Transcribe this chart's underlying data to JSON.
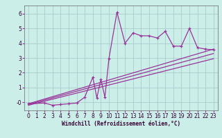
{
  "xlabel": "Windchill (Refroidissement éolien,°C)",
  "background_color": "#cceee8",
  "grid_color": "#aacccc",
  "line_color": "#993399",
  "spine_color": "#666666",
  "xlim": [
    -0.5,
    23.5
  ],
  "ylim": [
    -0.55,
    6.55
  ],
  "xticks": [
    0,
    1,
    2,
    3,
    4,
    5,
    6,
    7,
    8,
    9,
    10,
    11,
    12,
    13,
    14,
    15,
    16,
    17,
    18,
    19,
    20,
    21,
    22,
    23
  ],
  "yticks": [
    0,
    1,
    2,
    3,
    4,
    5,
    6
  ],
  "ytick_labels": [
    "-0",
    "1",
    "2",
    "3",
    "4",
    "5",
    "6"
  ],
  "line1_x": [
    0,
    23
  ],
  "line1_y": [
    -0.1,
    3.6
  ],
  "line2_x": [
    0,
    23
  ],
  "line2_y": [
    -0.15,
    3.3
  ],
  "line3_x": [
    0,
    23
  ],
  "line3_y": [
    -0.2,
    2.95
  ],
  "scatter_x": [
    0,
    2,
    3,
    4,
    5,
    6,
    7,
    8,
    8.5,
    9,
    9.5,
    10,
    11,
    12,
    13,
    14,
    15,
    16,
    17,
    18,
    19,
    20,
    21,
    22,
    23
  ],
  "scatter_y": [
    -0.1,
    -0.05,
    -0.2,
    -0.15,
    -0.1,
    -0.05,
    0.35,
    1.7,
    0.3,
    1.55,
    0.35,
    2.95,
    6.1,
    4.0,
    4.7,
    4.5,
    4.5,
    4.35,
    4.8,
    3.8,
    3.8,
    5.0,
    3.7,
    3.6,
    3.55
  ],
  "tick_fontsize": 5.5,
  "xlabel_fontsize": 5.5
}
